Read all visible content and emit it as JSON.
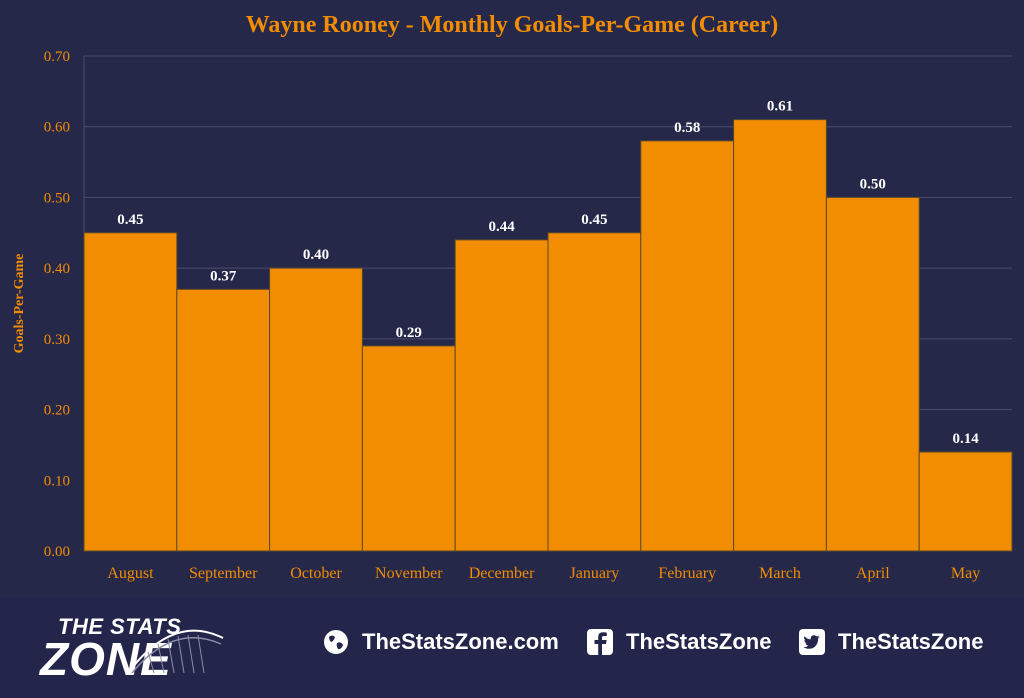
{
  "chart_data": {
    "type": "bar",
    "title": "Wayne Rooney - Monthly Goals-Per-Game (Career)",
    "xlabel": "",
    "ylabel": "Goals-Per-Game",
    "categories": [
      "August",
      "September",
      "October",
      "November",
      "December",
      "January",
      "February",
      "March",
      "April",
      "May"
    ],
    "values": [
      0.45,
      0.37,
      0.4,
      0.29,
      0.44,
      0.45,
      0.58,
      0.61,
      0.5,
      0.14
    ],
    "data_labels": [
      "0.45",
      "0.37",
      "0.40",
      "0.29",
      "0.44",
      "0.45",
      "0.58",
      "0.61",
      "0.50",
      "0.14"
    ],
    "ylim": [
      0,
      0.7
    ],
    "yticks": [
      "0.00",
      "0.10",
      "0.20",
      "0.30",
      "0.40",
      "0.50",
      "0.60",
      "0.70"
    ],
    "grid": true,
    "colors": {
      "bar": "#f28c00",
      "bar_edge": "#5a4a2a",
      "text": "#f28c00",
      "label": "#ffffff",
      "background": "#26284a",
      "grid": "#4a4d6e"
    }
  },
  "footer": {
    "logo_top": "THE STATS",
    "logo_bottom": "ZONE",
    "website": "TheStatsZone.com",
    "facebook": "TheStatsZone",
    "twitter": "TheStatsZone",
    "icons": [
      "globe-icon",
      "facebook-icon",
      "twitter-icon"
    ]
  }
}
